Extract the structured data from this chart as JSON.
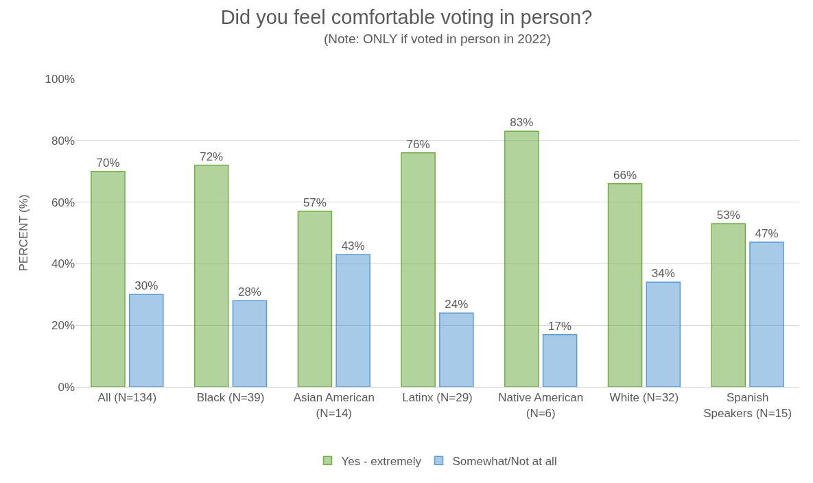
{
  "chart_data": {
    "type": "bar",
    "title": "Did you feel comfortable voting in person?",
    "subtitle": "(Note: ONLY if voted in person in 2022)",
    "ylabel": "PERCENT (%)",
    "categories": [
      "All (N=134)",
      "Black (N=39)",
      "Asian American (N=14)",
      "Latinx (N=29)",
      "Native American (N=6)",
      "White (N=32)",
      "Spanish Speakers (N=15)"
    ],
    "series": [
      {
        "name": "Yes - extremely",
        "color": "#70ad47",
        "values": [
          70,
          72,
          57,
          76,
          83,
          66,
          53
        ],
        "value_labels": [
          "70%",
          "72%",
          "57%",
          "76%",
          "83%",
          "66%",
          "53%"
        ]
      },
      {
        "name": "Somewhat/Not at all",
        "color": "#5b9bd5",
        "values": [
          30,
          28,
          43,
          24,
          17,
          34,
          47
        ],
        "value_labels": [
          "30%",
          "28%",
          "43%",
          "24%",
          "17%",
          "34%",
          "47%"
        ]
      }
    ],
    "ylim": [
      0,
      100
    ],
    "yticks": [
      {
        "value": 0,
        "label": "0%"
      },
      {
        "value": 20,
        "label": "20%"
      },
      {
        "value": 40,
        "label": "40%"
      },
      {
        "value": 60,
        "label": "60%"
      },
      {
        "value": 80,
        "label": "80%"
      },
      {
        "value": 100,
        "label": "100%"
      }
    ],
    "grid": "y",
    "legend": "bottom"
  }
}
